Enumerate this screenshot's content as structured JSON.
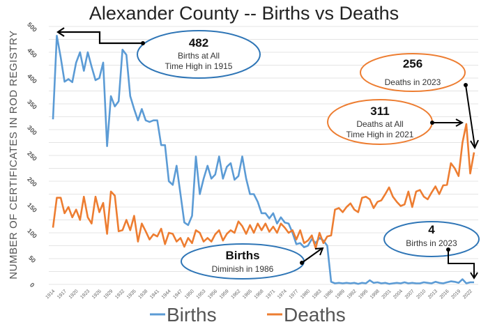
{
  "chart_data": {
    "type": "line",
    "title": "Alexander County -- Births vs Deaths",
    "ylabel": "NUMBER OF CERTIFICATES IN ROD REGISTRY",
    "xlabel": "",
    "ylim": [
      0,
      500
    ],
    "yticks": [
      0,
      50,
      100,
      150,
      200,
      250,
      300,
      350,
      400,
      450,
      500
    ],
    "x_start": 1914,
    "x_end": 2023,
    "xtick_step": 3,
    "grid": true,
    "legend": "bottom",
    "series": [
      {
        "name": "Births",
        "color": "#5b9bd5",
        "values": [
          320,
          482,
          440,
          393,
          398,
          392,
          430,
          450,
          414,
          450,
          422,
          396,
          400,
          430,
          268,
          365,
          345,
          355,
          455,
          445,
          365,
          340,
          318,
          340,
          318,
          315,
          318,
          318,
          270,
          270,
          200,
          193,
          230,
          175,
          120,
          115,
          133,
          248,
          175,
          205,
          230,
          205,
          213,
          248,
          205,
          228,
          235,
          203,
          210,
          248,
          205,
          175,
          175,
          160,
          138,
          138,
          128,
          138,
          118,
          130,
          120,
          118,
          100,
          78,
          80,
          72,
          75,
          88,
          80,
          90,
          85,
          75,
          5,
          2,
          3,
          2,
          3,
          2,
          3,
          1,
          3,
          2,
          8,
          3,
          4,
          2,
          3,
          1,
          2,
          3,
          2,
          4,
          2,
          3,
          2,
          2,
          4,
          3,
          2,
          5,
          3,
          2,
          4,
          6,
          5,
          3,
          10,
          2,
          4,
          4
        ]
      },
      {
        "name": "Deaths",
        "color": "#ed7d31",
        "values": [
          110,
          168,
          168,
          138,
          150,
          130,
          145,
          125,
          170,
          130,
          118,
          170,
          140,
          158,
          98,
          180,
          172,
          103,
          105,
          125,
          105,
          133,
          83,
          118,
          103,
          87,
          97,
          93,
          108,
          78,
          100,
          98,
          83,
          90,
          73,
          90,
          80,
          105,
          100,
          83,
          90,
          83,
          97,
          105,
          85,
          98,
          105,
          100,
          122,
          113,
          98,
          115,
          100,
          118,
          105,
          118,
          102,
          112,
          100,
          118,
          110,
          100,
          105,
          87,
          105,
          80,
          85,
          95,
          70,
          100,
          80,
          93,
          95,
          145,
          148,
          140,
          150,
          157,
          145,
          140,
          168,
          170,
          165,
          148,
          160,
          163,
          175,
          188,
          170,
          160,
          152,
          155,
          180,
          150,
          180,
          183,
          170,
          165,
          178,
          190,
          175,
          192,
          193,
          235,
          225,
          210,
          275,
          311,
          215,
          256
        ]
      }
    ],
    "annotations": [
      {
        "value": "482",
        "text1": "Births at All",
        "text2": "Time High in 1915",
        "color": "#2e75b6"
      },
      {
        "value": "256",
        "text1": "Deaths in 2023",
        "text2": "",
        "color": "#ed7d31"
      },
      {
        "value": "311",
        "text1": "Deaths at All",
        "text2": "Time High in 2021",
        "color": "#ed7d31"
      },
      {
        "value": "4",
        "text1": "Births in 2023",
        "text2": "",
        "color": "#2e75b6"
      },
      {
        "value": "Births",
        "text1": "Diminish in 1986",
        "text2": "",
        "color": "#2e75b6"
      }
    ]
  }
}
